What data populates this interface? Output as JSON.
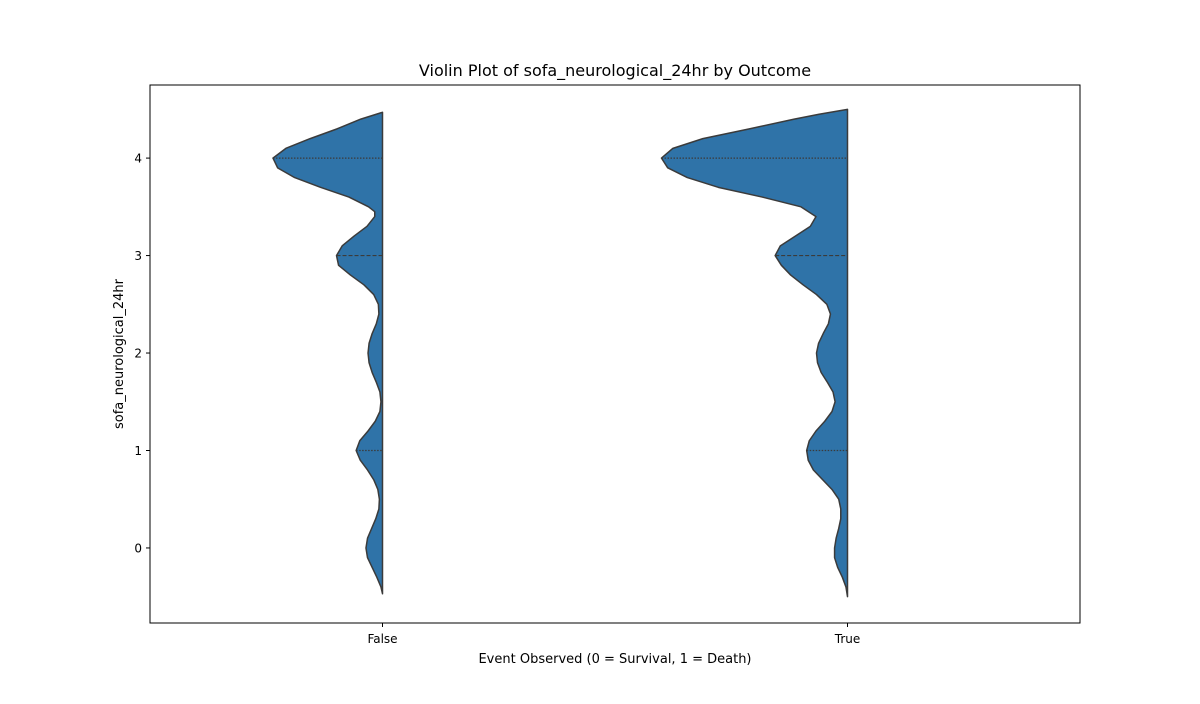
{
  "chart_data": {
    "type": "violin",
    "title": "Violin Plot of sofa_neurological_24hr by Outcome",
    "xlabel": "Event Observed (0 = Survival, 1 = Death)",
    "ylabel": "sofa_neurological_24hr",
    "categories": [
      "False",
      "True"
    ],
    "y_ticks": [
      0,
      1,
      2,
      3,
      4
    ],
    "ylim": [
      -0.77,
      4.75
    ],
    "split": true,
    "half_side": "left",
    "colors": {
      "fill": "#2f73a8",
      "edge": "#3b3b3b"
    },
    "violins": [
      {
        "category": "False",
        "y_range": [
          -0.47,
          4.47
        ],
        "density": [
          [
            -0.47,
            0.0
          ],
          [
            -0.4,
            0.03
          ],
          [
            -0.3,
            0.11
          ],
          [
            -0.2,
            0.2
          ],
          [
            -0.1,
            0.29
          ],
          [
            0.0,
            0.32
          ],
          [
            0.1,
            0.29
          ],
          [
            0.2,
            0.21
          ],
          [
            0.3,
            0.13
          ],
          [
            0.4,
            0.07
          ],
          [
            0.5,
            0.06
          ],
          [
            0.6,
            0.09
          ],
          [
            0.7,
            0.17
          ],
          [
            0.8,
            0.29
          ],
          [
            0.9,
            0.43
          ],
          [
            1.0,
            0.51
          ],
          [
            1.1,
            0.44
          ],
          [
            1.2,
            0.28
          ],
          [
            1.3,
            0.14
          ],
          [
            1.4,
            0.05
          ],
          [
            1.5,
            0.03
          ],
          [
            1.6,
            0.05
          ],
          [
            1.7,
            0.12
          ],
          [
            1.8,
            0.2
          ],
          [
            1.9,
            0.26
          ],
          [
            2.0,
            0.28
          ],
          [
            2.1,
            0.26
          ],
          [
            2.2,
            0.2
          ],
          [
            2.3,
            0.12
          ],
          [
            2.4,
            0.07
          ],
          [
            2.5,
            0.08
          ],
          [
            2.6,
            0.17
          ],
          [
            2.7,
            0.36
          ],
          [
            2.8,
            0.62
          ],
          [
            2.9,
            0.85
          ],
          [
            3.0,
            0.89
          ],
          [
            3.1,
            0.78
          ],
          [
            3.2,
            0.55
          ],
          [
            3.3,
            0.3
          ],
          [
            3.4,
            0.15
          ],
          [
            3.45,
            0.15
          ],
          [
            3.5,
            0.27
          ],
          [
            3.6,
            0.65
          ],
          [
            3.7,
            1.2
          ],
          [
            3.8,
            1.7
          ],
          [
            3.9,
            2.03
          ],
          [
            4.0,
            2.12
          ],
          [
            4.1,
            1.87
          ],
          [
            4.2,
            1.4
          ],
          [
            4.3,
            0.88
          ],
          [
            4.4,
            0.42
          ],
          [
            4.47,
            0.0
          ]
        ],
        "quartiles": [
          1,
          3,
          4
        ]
      },
      {
        "category": "True",
        "y_range": [
          -0.5,
          4.5
        ],
        "density": [
          [
            -0.5,
            0.0
          ],
          [
            -0.4,
            0.03
          ],
          [
            -0.3,
            0.1
          ],
          [
            -0.2,
            0.19
          ],
          [
            -0.1,
            0.25
          ],
          [
            0.0,
            0.25
          ],
          [
            0.1,
            0.22
          ],
          [
            0.2,
            0.17
          ],
          [
            0.3,
            0.13
          ],
          [
            0.4,
            0.13
          ],
          [
            0.5,
            0.17
          ],
          [
            0.6,
            0.3
          ],
          [
            0.7,
            0.48
          ],
          [
            0.8,
            0.66
          ],
          [
            0.9,
            0.76
          ],
          [
            1.0,
            0.79
          ],
          [
            1.1,
            0.74
          ],
          [
            1.2,
            0.61
          ],
          [
            1.3,
            0.44
          ],
          [
            1.4,
            0.3
          ],
          [
            1.5,
            0.24
          ],
          [
            1.6,
            0.28
          ],
          [
            1.7,
            0.39
          ],
          [
            1.8,
            0.51
          ],
          [
            1.9,
            0.58
          ],
          [
            2.0,
            0.6
          ],
          [
            2.1,
            0.56
          ],
          [
            2.2,
            0.47
          ],
          [
            2.3,
            0.37
          ],
          [
            2.4,
            0.33
          ],
          [
            2.5,
            0.4
          ],
          [
            2.6,
            0.6
          ],
          [
            2.7,
            0.86
          ],
          [
            2.8,
            1.1
          ],
          [
            2.9,
            1.28
          ],
          [
            3.0,
            1.4
          ],
          [
            3.1,
            1.3
          ],
          [
            3.2,
            1.01
          ],
          [
            3.3,
            0.72
          ],
          [
            3.4,
            0.61
          ],
          [
            3.5,
            0.9
          ],
          [
            3.6,
            1.65
          ],
          [
            3.7,
            2.5
          ],
          [
            3.8,
            3.1
          ],
          [
            3.9,
            3.48
          ],
          [
            4.0,
            3.6
          ],
          [
            4.1,
            3.38
          ],
          [
            4.2,
            2.8
          ],
          [
            4.3,
            1.9
          ],
          [
            4.4,
            1.03
          ],
          [
            4.45,
            0.55
          ],
          [
            4.5,
            0.0
          ]
        ],
        "quartiles": [
          1,
          3,
          4
        ]
      }
    ]
  }
}
